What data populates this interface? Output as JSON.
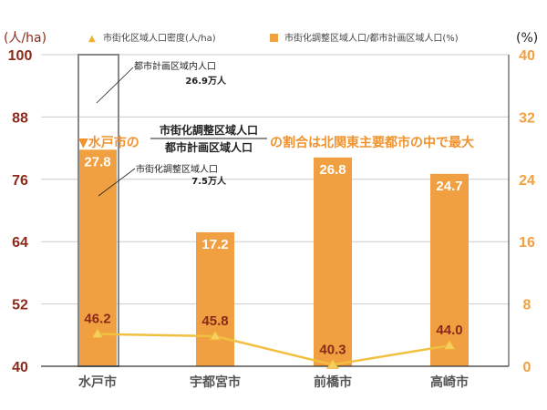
{
  "chart_data": {
    "type": "bar",
    "categories": [
      "水戸市",
      "宇都宮市",
      "前橋市",
      "高崎市"
    ],
    "series": [
      {
        "name": "市街化調整区域人口/都市計画区域人口(%)",
        "type": "bar",
        "axis": "right",
        "values": [
          27.8,
          17.2,
          26.8,
          24.7
        ],
        "color": "#f0a040"
      },
      {
        "name": "市街化区域人口密度(人/ha)",
        "type": "line",
        "axis": "left",
        "values": [
          46.2,
          45.8,
          40.3,
          44.0
        ],
        "color": "#f2c040"
      }
    ],
    "left_axis": {
      "label": "(人/ha)",
      "range": [
        40,
        100
      ],
      "ticks": [
        "100",
        "88",
        "76",
        "64",
        "52",
        "40"
      ],
      "color": "#8b2a1a"
    },
    "right_axis": {
      "label": "(%)",
      "range": [
        0,
        40
      ],
      "ticks": [
        "40",
        "32",
        "24",
        "16",
        "8",
        "0"
      ],
      "color": "#f0a040"
    },
    "grid": true,
    "legend": "top",
    "bar_labels": [
      "27.8",
      "17.2",
      "26.8",
      "24.7"
    ],
    "line_labels": [
      "46.2",
      "45.8",
      "40.3",
      "44.0"
    ],
    "annotations": {
      "total_label": "都市計画区域内人口",
      "total_value": "26.9万人",
      "sub_label": "市街化調整区域人口",
      "sub_value": "7.5万人",
      "headline_prefix": "▼水戸市の",
      "fraction_numerator": "市街化調整区域人口",
      "fraction_denominator": "都市計画区域人口",
      "headline_suffix": "の割合は北関東主要都市の中で最大"
    }
  }
}
